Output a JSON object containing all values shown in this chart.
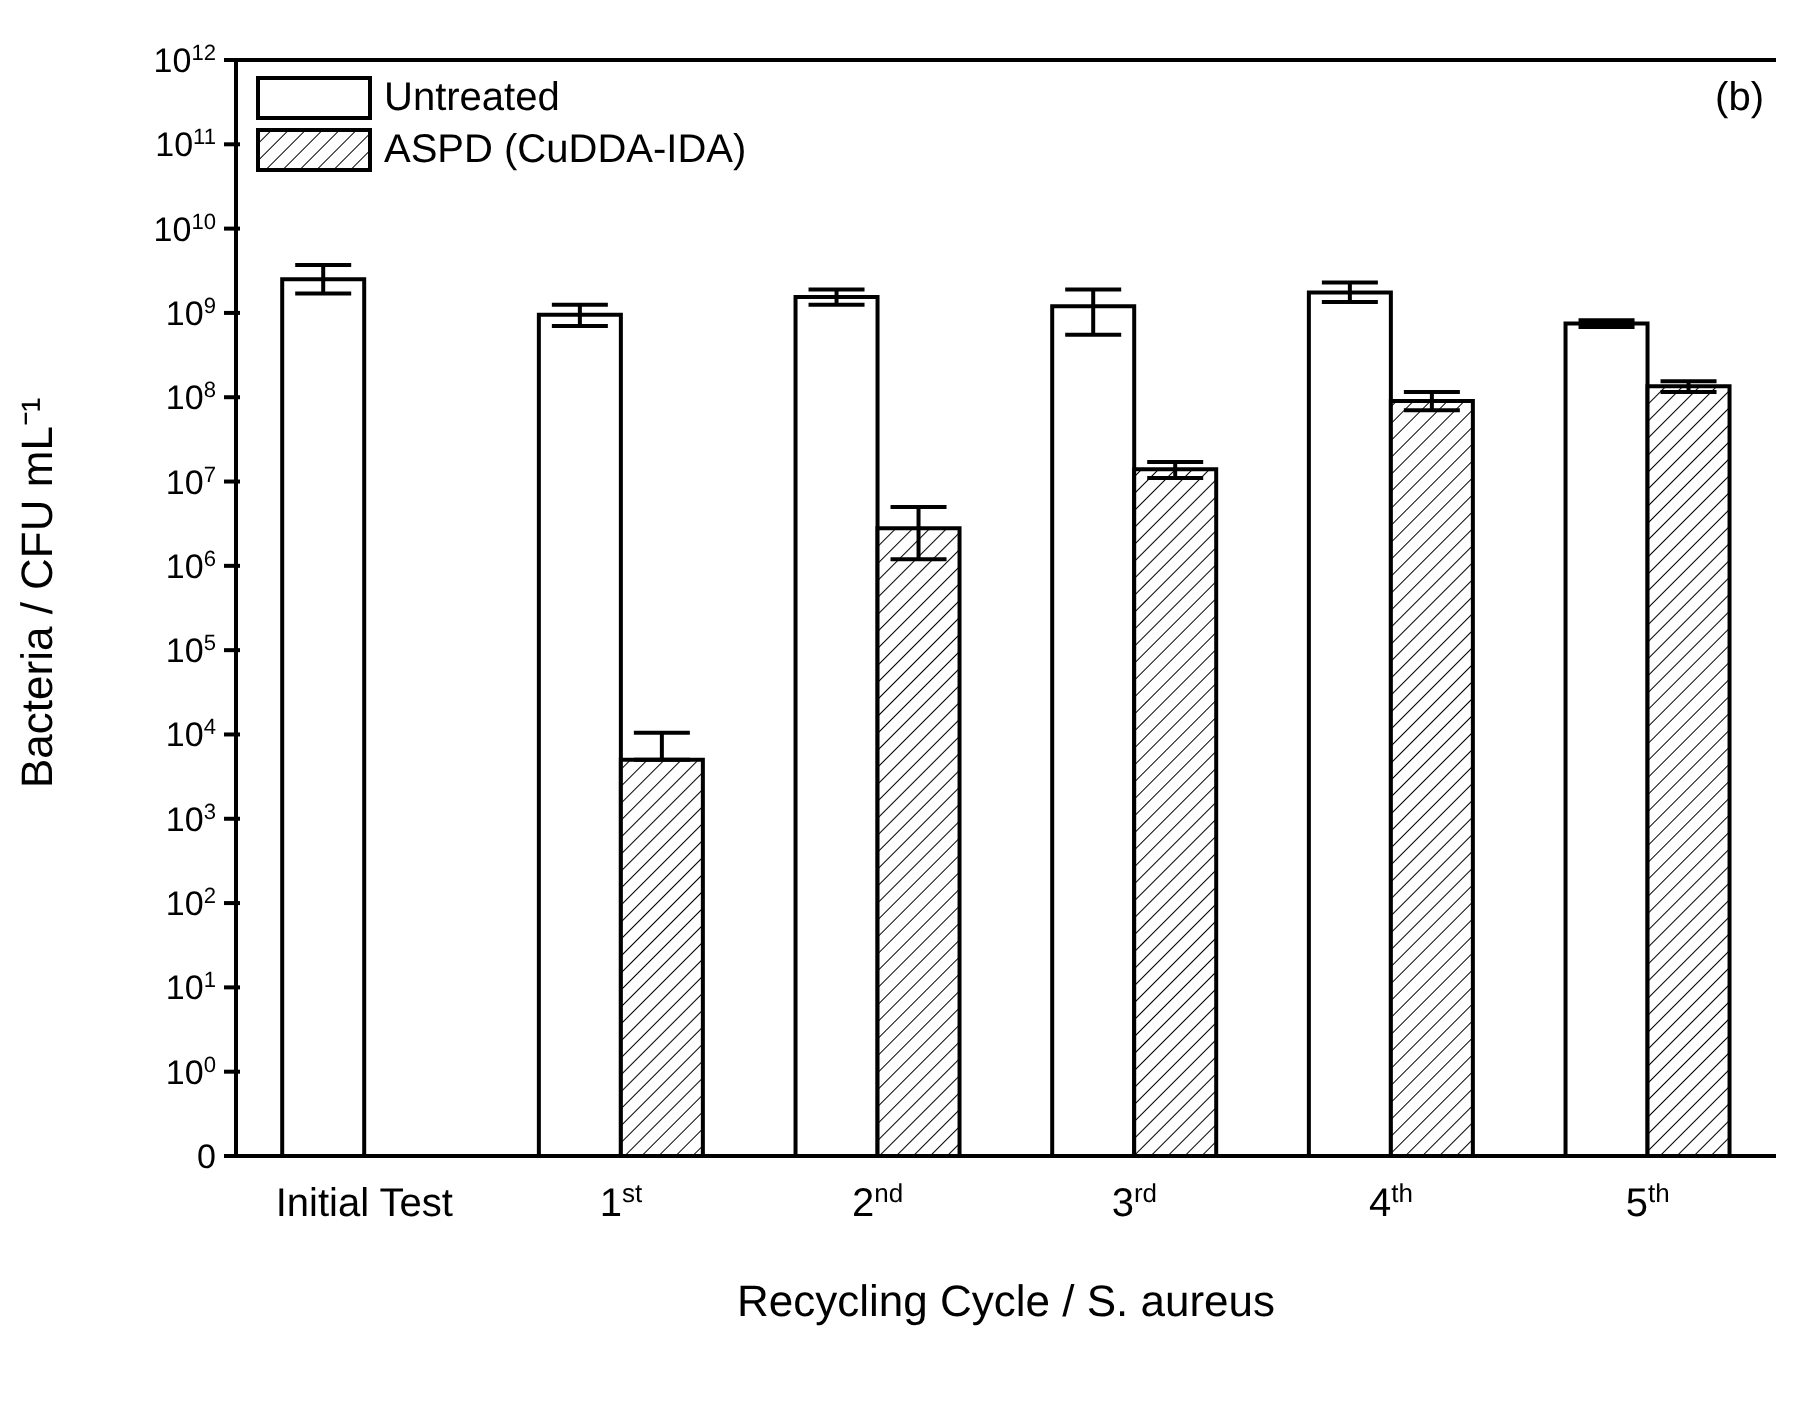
{
  "chart_data": {
    "type": "bar",
    "xlabel": "Recycling Cycle / S. aureus",
    "ylabel": "Bacteria / CFU mL⁻¹",
    "categories": [
      "Initial Test",
      "1$^{st}$",
      "2$^{nd}$",
      "3$^{rd}$",
      "4$^{th}$",
      "5$^{th}$"
    ],
    "series": [
      {
        "name": "Untreated",
        "color": "#ffffff",
        "values": [
          2500000000.0,
          950000000.0,
          1550000000.0,
          1200000000.0,
          1750000000.0,
          750000000.0
        ],
        "errors": [
          [
            1700000000.0,
            3700000000.0
          ],
          [
            700000000.0,
            1250000000.0
          ],
          [
            1250000000.0,
            1900000000.0
          ],
          [
            550000000.0,
            1900000000.0
          ],
          [
            1350000000.0,
            2300000000.0
          ],
          [
            680000000.0,
            820000000.0
          ]
        ]
      },
      {
        "name": "ASPD (CuDDA-IDA)",
        "color": "#000000",
        "values": [
          null,
          5000.0,
          2800000.0,
          14000000.0,
          90000000.0,
          135000000.0
        ],
        "errors": [
          null,
          [
            5000.0,
            10500.0
          ],
          [
            1200000.0,
            5000000.0
          ],
          [
            11000000.0,
            17000000.0
          ],
          [
            70000000.0,
            115000000.0
          ],
          [
            115000000.0,
            155000000.0
          ]
        ]
      }
    ],
    "log": true,
    "ylim": [
      0.1,
      1000000000000.0
    ],
    "yticks": [
      {
        "value": 0.1,
        "label": "0"
      },
      {
        "value": 1,
        "label": "10$^{0}$"
      },
      {
        "value": 10,
        "label": "10$^{1}$"
      },
      {
        "value": 100,
        "label": "10$^{2}$"
      },
      {
        "value": 1000,
        "label": "10$^{3}$"
      },
      {
        "value": 10000.0,
        "label": "10$^{4}$"
      },
      {
        "value": 100000.0,
        "label": "10$^{5}$"
      },
      {
        "value": 1000000.0,
        "label": "10$^{6}$"
      },
      {
        "value": 10000000.0,
        "label": "10$^{7}$"
      },
      {
        "value": 100000000.0,
        "label": "10$^{8}$"
      },
      {
        "value": 1000000000.0,
        "label": "10$^{9}$"
      },
      {
        "value": 10000000000.0,
        "label": "10$^{10}$"
      },
      {
        "value": 100000000000.0,
        "label": "10$^{11}$"
      },
      {
        "value": 1000000000000.0,
        "label": "10$^{12}$"
      }
    ],
    "legend": "top left",
    "annotations": [
      "(b)"
    ]
  }
}
